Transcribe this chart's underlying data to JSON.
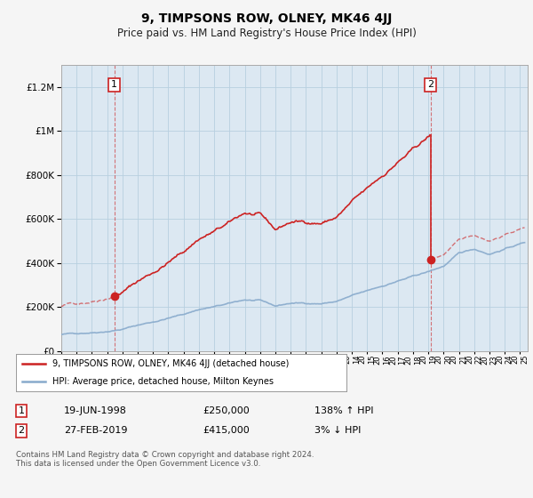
{
  "title": "9, TIMPSONS ROW, OLNEY, MK46 4JJ",
  "subtitle": "Price paid vs. HM Land Registry's House Price Index (HPI)",
  "legend_line1": "9, TIMPSONS ROW, OLNEY, MK46 4JJ (detached house)",
  "legend_line2": "HPI: Average price, detached house, Milton Keynes",
  "annotation1_date": "19-JUN-1998",
  "annotation1_price": "£250,000",
  "annotation1_hpi": "138% ↑ HPI",
  "annotation2_date": "27-FEB-2019",
  "annotation2_price": "£415,000",
  "annotation2_hpi": "3% ↓ HPI",
  "footer": "Contains HM Land Registry data © Crown copyright and database right 2024.\nThis data is licensed under the Open Government Licence v3.0.",
  "property_color": "#cc2222",
  "hpi_color": "#88aacc",
  "background_color": "#dce8f2",
  "plot_bg_color": "#dce8f2",
  "ylim": [
    0,
    1300000
  ],
  "sale1_x": 1998.47,
  "sale1_y": 250000,
  "sale2_x": 2019.15,
  "sale2_y": 415000,
  "xmin": 1995.0,
  "xmax": 2025.5
}
